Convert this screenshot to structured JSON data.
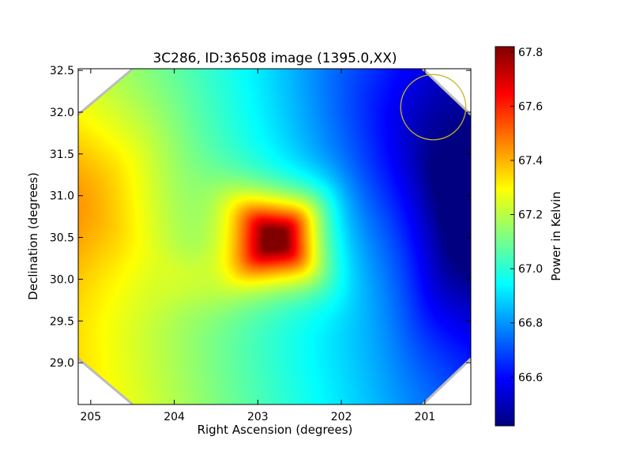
{
  "chart_data": {
    "type": "heatmap",
    "title": "3C286, ID:36508 image (1395.0,XX)",
    "xlabel": "Right Ascension (degrees)",
    "ylabel": "Declination (degrees)",
    "xlim": [
      205.15,
      200.45
    ],
    "ylim": [
      28.5,
      32.52
    ],
    "x_ticks": [
      {
        "value": 205,
        "label": "205"
      },
      {
        "value": 204,
        "label": "204"
      },
      {
        "value": 203,
        "label": "203"
      },
      {
        "value": 202,
        "label": "202"
      },
      {
        "value": 201,
        "label": "201"
      }
    ],
    "y_ticks": [
      {
        "value": 29.0,
        "label": "29.0"
      },
      {
        "value": 29.5,
        "label": "29.5"
      },
      {
        "value": 30.0,
        "label": "30.0"
      },
      {
        "value": 30.5,
        "label": "30.5"
      },
      {
        "value": 31.0,
        "label": "31.0"
      },
      {
        "value": 31.5,
        "label": "31.5"
      },
      {
        "value": 32.0,
        "label": "32.0"
      },
      {
        "value": 32.5,
        "label": "32.5"
      }
    ],
    "colorbar": {
      "label": "Power in Kelvin",
      "colormap": "jet",
      "range": [
        66.42,
        67.82
      ],
      "ticks": [
        {
          "value": 66.6,
          "label": "66.6"
        },
        {
          "value": 66.8,
          "label": "66.8"
        },
        {
          "value": 67.0,
          "label": "67.0"
        },
        {
          "value": 67.2,
          "label": "67.2"
        },
        {
          "value": 67.4,
          "label": "67.4"
        },
        {
          "value": 67.6,
          "label": "67.6"
        },
        {
          "value": 67.8,
          "label": "67.8"
        }
      ]
    },
    "field": {
      "baseline": {
        "base": 66.99,
        "ra_coefficient": 0.14,
        "ra_reference": 203,
        "dec_coefficient": -0.03,
        "dec_reference": 30.5
      },
      "components": [
        {
          "ra": 202.78,
          "dec": 30.48,
          "amplitude": 0.98,
          "width_ra": 0.32,
          "width_dec": 0.3,
          "shape_power": 1.6
        },
        {
          "ra": 203.85,
          "dec": 30.0,
          "amplitude": 0.05,
          "width_ra": 0.25,
          "width_dec": 0.22,
          "shape_power": 2
        },
        {
          "ra": 205.05,
          "dec": 30.95,
          "amplitude": 0.16,
          "width_ra": 0.7,
          "width_dec": 0.7,
          "shape_power": 2
        },
        {
          "ra": 200.5,
          "dec": 30.6,
          "amplitude": -0.25,
          "width_ra": 0.45,
          "width_dec": 0.9,
          "shape_power": 2
        },
        {
          "ra": 201.3,
          "dec": 31.7,
          "amplitude": -0.12,
          "width_ra": 0.8,
          "width_dec": 0.8,
          "shape_power": 2
        }
      ]
    },
    "beam_marker": {
      "ra": 200.9,
      "dec": 32.06,
      "radius_ra": 0.39,
      "color": "#c8b428"
    },
    "colors": {
      "frame": "#000000",
      "background": "#ffffff"
    }
  }
}
